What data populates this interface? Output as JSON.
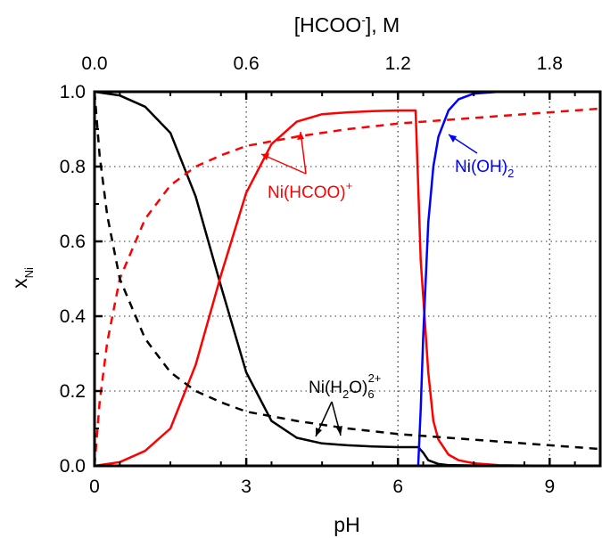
{
  "chart_data": {
    "type": "line",
    "xlabel": "pH",
    "ylabel": "x",
    "ylabel_sub": "Ni",
    "top_xlabel_pre": "[HCOO",
    "top_xlabel_sup": "-",
    "top_xlabel_post": "], M",
    "xlim": [
      0,
      10
    ],
    "ylim": [
      0,
      1
    ],
    "top_xlim": [
      0,
      2
    ],
    "x_ticks": [
      "0",
      "3",
      "6",
      "9"
    ],
    "x_tick_values": [
      0,
      3,
      6,
      9
    ],
    "y_ticks": [
      "0.0",
      "0.2",
      "0.4",
      "0.6",
      "0.8",
      "1.0"
    ],
    "y_tick_values": [
      0,
      0.2,
      0.4,
      0.6,
      0.8,
      1.0
    ],
    "top_ticks": [
      "0.0",
      "0.6",
      "1.2",
      "1.8"
    ],
    "top_tick_values": [
      0,
      0.6,
      1.2,
      1.8
    ],
    "grid": true,
    "annotations": {
      "nihcoo": {
        "main": "Ni(HCOO)",
        "sup": "+",
        "color": "#ff0000"
      },
      "nioh": {
        "main": "Ni(OH)",
        "sub": "2",
        "color": "#0000ff"
      },
      "nih2o_a": "Ni(H",
      "nih2o_b": "2",
      "nih2o_c": "O)",
      "nih2o_d": "6",
      "nih2o_e": "2+",
      "nih2o_color": "#000000"
    },
    "series": [
      {
        "key": "black-solid",
        "color": "#000000",
        "dash": false,
        "axis": "pH",
        "x": [
          0,
          0.5,
          1.0,
          1.5,
          2.0,
          2.5,
          3.0,
          3.5,
          4.0,
          4.5,
          5.0,
          5.5,
          6.0,
          6.3,
          6.4,
          6.5,
          6.6,
          6.8,
          7.0,
          7.5,
          8.0,
          10.0
        ],
        "y": [
          1.0,
          0.99,
          0.96,
          0.89,
          0.72,
          0.48,
          0.25,
          0.12,
          0.075,
          0.06,
          0.055,
          0.052,
          0.05,
          0.05,
          0.05,
          0.035,
          0.015,
          0.005,
          0.002,
          0.001,
          0.0,
          0.0
        ]
      },
      {
        "key": "red-solid",
        "color": "#ff0000",
        "dash": false,
        "axis": "pH",
        "x": [
          0,
          0.5,
          1.0,
          1.5,
          2.0,
          2.5,
          3.0,
          3.5,
          4.0,
          4.5,
          5.0,
          5.5,
          6.0,
          6.35,
          6.4,
          6.45,
          6.5,
          6.6,
          6.7,
          6.8,
          7.0,
          7.2,
          7.5,
          8.0,
          9.0,
          10.0
        ],
        "y": [
          0.0,
          0.01,
          0.04,
          0.1,
          0.27,
          0.51,
          0.73,
          0.86,
          0.92,
          0.94,
          0.945,
          0.948,
          0.95,
          0.95,
          0.75,
          0.55,
          0.45,
          0.25,
          0.12,
          0.07,
          0.03,
          0.015,
          0.007,
          0.002,
          0.0,
          0.0
        ]
      },
      {
        "key": "blue-solid",
        "color": "#0000ff",
        "dash": false,
        "axis": "pH",
        "x": [
          0,
          6.0,
          6.4,
          6.45,
          6.5,
          6.6,
          6.7,
          6.8,
          7.0,
          7.2,
          7.5,
          8.0,
          10.0
        ],
        "y": [
          0.0,
          0.0,
          0.0,
          0.15,
          0.35,
          0.65,
          0.8,
          0.88,
          0.95,
          0.98,
          0.995,
          1.0,
          1.0
        ]
      },
      {
        "key": "red-dashed",
        "color": "#ff0000",
        "dash": true,
        "axis": "conc",
        "x": [
          0,
          0.02,
          0.05,
          0.1,
          0.2,
          0.3,
          0.4,
          0.5,
          0.6,
          0.8,
          1.0,
          1.2,
          1.4,
          1.6,
          1.8,
          2.0
        ],
        "y": [
          0.0,
          0.17,
          0.33,
          0.5,
          0.66,
          0.75,
          0.8,
          0.83,
          0.855,
          0.88,
          0.9,
          0.915,
          0.925,
          0.935,
          0.945,
          0.955
        ]
      },
      {
        "key": "black-dashed",
        "color": "#000000",
        "dash": true,
        "axis": "conc",
        "x": [
          0,
          0.02,
          0.05,
          0.1,
          0.2,
          0.3,
          0.4,
          0.5,
          0.6,
          0.8,
          1.0,
          1.2,
          1.4,
          1.6,
          1.8,
          2.0
        ],
        "y": [
          1.0,
          0.83,
          0.67,
          0.5,
          0.34,
          0.25,
          0.2,
          0.17,
          0.145,
          0.12,
          0.1,
          0.085,
          0.075,
          0.065,
          0.055,
          0.045
        ]
      }
    ]
  }
}
